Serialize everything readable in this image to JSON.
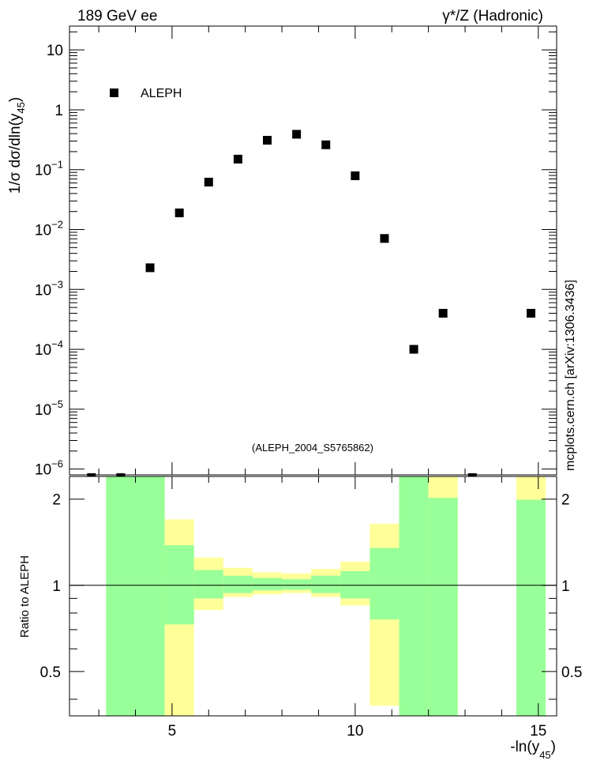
{
  "header": {
    "left": "189 GeV ee",
    "right": "γ*/Z (Hadronic)"
  },
  "watermark": "mcplots.cern.ch [arXiv:1306.3436]",
  "analysis_tag": "(ALEPH_2004_S5765862)",
  "colors": {
    "green_band": "#99ff99",
    "yellow_band": "#ffff99",
    "marker": "#000000",
    "tag_text": "#999999"
  },
  "chart_data": [
    {
      "type": "scatter",
      "ylabel_parts": [
        "1/σ  dσ/dln(y",
        "45",
        ")"
      ],
      "xlim": [
        2.2,
        15.5
      ],
      "ylim": [
        8e-07,
        25
      ],
      "log_y": true,
      "y_ticks": [
        {
          "value": 10,
          "base": "10",
          "exp": ""
        },
        {
          "value": 1,
          "base": "1",
          "exp": ""
        },
        {
          "value": 0.1,
          "base": "10",
          "exp": "−1"
        },
        {
          "value": 0.01,
          "base": "10",
          "exp": "−2"
        },
        {
          "value": 0.001,
          "base": "10",
          "exp": "−3"
        },
        {
          "value": 0.0001,
          "base": "10",
          "exp": "−4"
        },
        {
          "value": 1e-05,
          "base": "10",
          "exp": "−5"
        },
        {
          "value": 1e-06,
          "base": "10",
          "exp": "−6"
        }
      ],
      "legend": {
        "label": "ALEPH",
        "position": "top-left"
      },
      "series": [
        {
          "name": "ALEPH",
          "points": [
            {
              "x": 4.4,
              "y": 0.0023
            },
            {
              "x": 5.2,
              "y": 0.019
            },
            {
              "x": 6.0,
              "y": 0.062
            },
            {
              "x": 6.8,
              "y": 0.15
            },
            {
              "x": 7.6,
              "y": 0.31
            },
            {
              "x": 8.4,
              "y": 0.39
            },
            {
              "x": 9.2,
              "y": 0.26
            },
            {
              "x": 10.0,
              "y": 0.079
            },
            {
              "x": 10.8,
              "y": 0.0071
            },
            {
              "x": 11.6,
              "y": 0.0001
            },
            {
              "x": 12.4,
              "y": 0.0004
            },
            {
              "x": 14.8,
              "y": 0.0004
            }
          ]
        }
      ],
      "offscale_markers_x": [
        2.8,
        3.6,
        13.2
      ]
    },
    {
      "type": "area",
      "ylabel": "Ratio to ALEPH",
      "xlabel_parts": [
        "-ln(y",
        "45",
        ")"
      ],
      "xlim": [
        2.2,
        15.5
      ],
      "ylim": [
        0.35,
        2.4
      ],
      "log_y": true,
      "x_ticks": [
        "5",
        "10",
        "15"
      ],
      "x_tick_values": [
        5,
        10,
        15
      ],
      "y_ticks": [
        "0.5",
        "1",
        "2"
      ],
      "y_tick_values": [
        0.5,
        1,
        2
      ],
      "reference_line": 1,
      "bins": [
        {
          "x0": 3.2,
          "x1": 4.8,
          "yellow": [
            0.35,
            2.4
          ],
          "green": [
            0.35,
            2.4
          ]
        },
        {
          "x0": 4.8,
          "x1": 5.6,
          "yellow": [
            0.35,
            1.7
          ],
          "green": [
            0.73,
            1.38
          ]
        },
        {
          "x0": 5.6,
          "x1": 6.4,
          "yellow": [
            0.82,
            1.25
          ],
          "green": [
            0.9,
            1.13
          ]
        },
        {
          "x0": 6.4,
          "x1": 7.2,
          "yellow": [
            0.91,
            1.15
          ],
          "green": [
            0.94,
            1.08
          ]
        },
        {
          "x0": 7.2,
          "x1": 8.0,
          "yellow": [
            0.93,
            1.11
          ],
          "green": [
            0.96,
            1.06
          ]
        },
        {
          "x0": 8.0,
          "x1": 8.8,
          "yellow": [
            0.94,
            1.1
          ],
          "green": [
            0.965,
            1.05
          ]
        },
        {
          "x0": 8.8,
          "x1": 9.6,
          "yellow": [
            0.91,
            1.14
          ],
          "green": [
            0.94,
            1.08
          ]
        },
        {
          "x0": 9.6,
          "x1": 10.4,
          "yellow": [
            0.85,
            1.21
          ],
          "green": [
            0.9,
            1.12
          ]
        },
        {
          "x0": 10.4,
          "x1": 11.2,
          "yellow": [
            0.38,
            1.64
          ],
          "green": [
            0.76,
            1.35
          ]
        },
        {
          "x0": 11.2,
          "x1": 12.0,
          "yellow": [
            0.35,
            2.4
          ],
          "green": [
            0.35,
            2.4
          ]
        },
        {
          "x0": 12.0,
          "x1": 12.8,
          "yellow": [
            0.35,
            2.4
          ],
          "green": [
            0.35,
            2.02
          ]
        },
        {
          "x0": 14.4,
          "x1": 15.2,
          "yellow": [
            0.35,
            2.4
          ],
          "green": [
            0.35,
            1.99
          ]
        }
      ]
    }
  ]
}
